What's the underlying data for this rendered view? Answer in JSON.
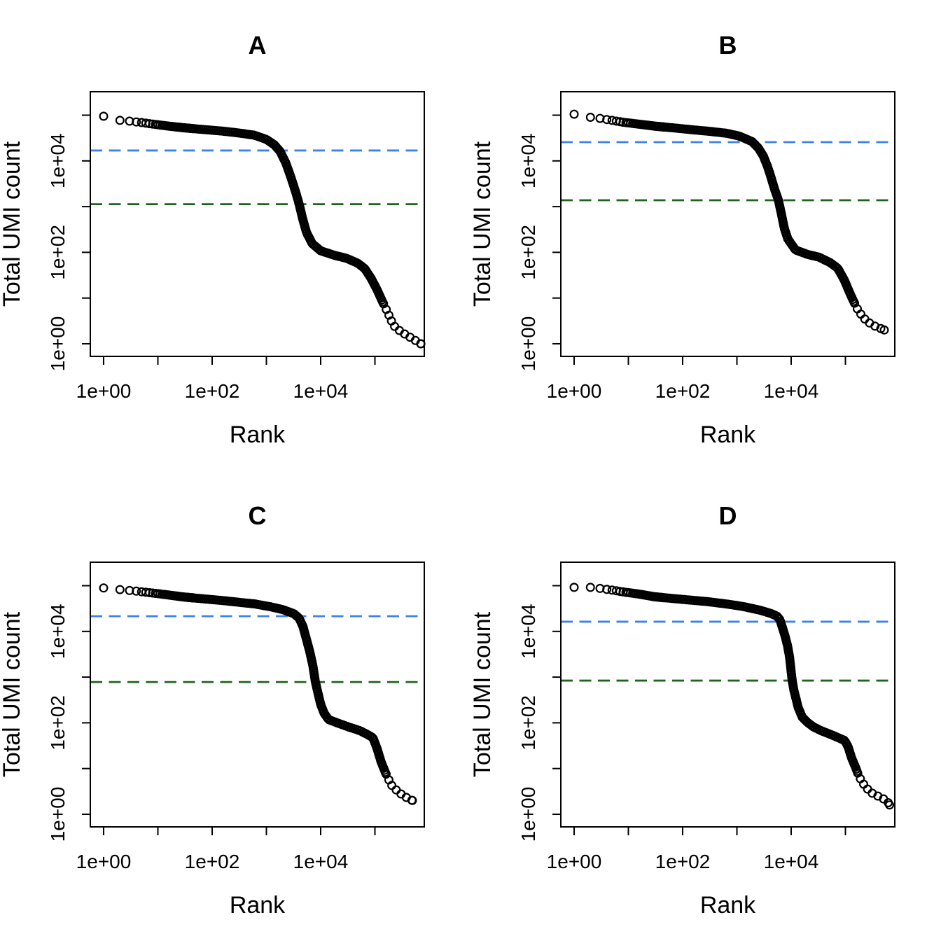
{
  "figure": {
    "background": "#ffffff",
    "layout": "2x2 panel grid of barcode rank plots"
  },
  "colors": {
    "point_stroke": "#000000",
    "knee_line": "#3b82f0",
    "inflection_line": "#1d651d",
    "axis": "#000000"
  },
  "axis_text": {
    "xlabel": "Rank",
    "ylabel": "Total UMI count",
    "x_tick_labels": [
      "1e+00",
      "1e+02",
      "1e+04"
    ],
    "y_tick_labels": [
      "1e+00",
      "1e+02",
      "1e+04"
    ]
  },
  "chart_data": [
    {
      "id": "A",
      "title": "A",
      "type": "scatter",
      "xlabel": "Rank",
      "ylabel": "Total UMI count",
      "x_scale": "log",
      "y_scale": "log",
      "x_tick_labels": [
        "1e+00",
        "1e+02",
        "1e+04"
      ],
      "y_tick_labels": [
        "1e+00",
        "1e+02",
        "1e+04"
      ],
      "x_range": [
        0.57,
        810000
      ],
      "y_range": [
        0.53,
        320000
      ],
      "knee_line_value": 16900,
      "inflection_line_value": 1130,
      "points": [
        [
          1,
          95000
        ],
        [
          2,
          77000
        ],
        [
          3,
          74000
        ],
        [
          5,
          69000
        ],
        [
          8,
          64000
        ],
        [
          15,
          58000
        ],
        [
          30,
          53000
        ],
        [
          70,
          48500
        ],
        [
          150,
          45000
        ],
        [
          300,
          41000
        ],
        [
          600,
          36500
        ],
        [
          1000,
          29500
        ],
        [
          1400,
          22500
        ],
        [
          1800,
          16000
        ],
        [
          2300,
          8800
        ],
        [
          2900,
          4000
        ],
        [
          3500,
          2000
        ],
        [
          4000,
          1150
        ],
        [
          4700,
          520
        ],
        [
          5500,
          270
        ],
        [
          7000,
          155
        ],
        [
          10000,
          108
        ],
        [
          18000,
          86
        ],
        [
          30000,
          74
        ],
        [
          48000,
          58
        ],
        [
          65000,
          44
        ],
        [
          85000,
          27
        ],
        [
          110000,
          15
        ],
        [
          140000,
          8
        ],
        [
          170000,
          5
        ],
        [
          200000,
          3.2
        ],
        [
          235000,
          2.3
        ],
        [
          310000,
          1.8
        ],
        [
          700000,
          1
        ]
      ]
    },
    {
      "id": "B",
      "title": "B",
      "type": "scatter",
      "xlabel": "Rank",
      "ylabel": "Total UMI count",
      "x_scale": "log",
      "y_scale": "log",
      "x_tick_labels": [
        "1e+00",
        "1e+02",
        "1e+04"
      ],
      "y_tick_labels": [
        "1e+00",
        "1e+02",
        "1e+04"
      ],
      "x_range": [
        0.57,
        810000
      ],
      "y_range": [
        0.53,
        320000
      ],
      "knee_line_value": 25700,
      "inflection_line_value": 1380,
      "points": [
        [
          1,
          105000
        ],
        [
          2,
          90000
        ],
        [
          3,
          85000
        ],
        [
          5,
          77000
        ],
        [
          8,
          70000
        ],
        [
          15,
          64000
        ],
        [
          31,
          57500
        ],
        [
          70,
          52500
        ],
        [
          150,
          48000
        ],
        [
          300,
          44500
        ],
        [
          620,
          40500
        ],
        [
          1100,
          35000
        ],
        [
          1900,
          26500
        ],
        [
          2500,
          19000
        ],
        [
          3100,
          12500
        ],
        [
          3700,
          7300
        ],
        [
          4200,
          4600
        ],
        [
          5000,
          2300
        ],
        [
          5800,
          1400
        ],
        [
          6700,
          640
        ],
        [
          7500,
          330
        ],
        [
          8700,
          195
        ],
        [
          12000,
          113
        ],
        [
          20000,
          90
        ],
        [
          33000,
          78
        ],
        [
          53000,
          59
        ],
        [
          72000,
          45
        ],
        [
          95000,
          25
        ],
        [
          120000,
          13
        ],
        [
          160000,
          6.2
        ],
        [
          210000,
          3.8
        ],
        [
          260000,
          3
        ],
        [
          330000,
          2.5
        ],
        [
          520000,
          2
        ]
      ]
    },
    {
      "id": "C",
      "title": "C",
      "type": "scatter",
      "xlabel": "Rank",
      "ylabel": "Total UMI count",
      "x_scale": "log",
      "y_scale": "log",
      "x_tick_labels": [
        "1e+00",
        "1e+02",
        "1e+04"
      ],
      "y_tick_labels": [
        "1e+00",
        "1e+02",
        "1e+04"
      ],
      "x_range": [
        0.57,
        810000
      ],
      "y_range": [
        0.53,
        320000
      ],
      "knee_line_value": 21500,
      "inflection_line_value": 780,
      "points": [
        [
          1,
          89000
        ],
        [
          2,
          82000
        ],
        [
          4,
          76000
        ],
        [
          8,
          69000
        ],
        [
          15,
          63000
        ],
        [
          30,
          56500
        ],
        [
          70,
          51500
        ],
        [
          150,
          47500
        ],
        [
          300,
          43500
        ],
        [
          600,
          40000
        ],
        [
          1200,
          34500
        ],
        [
          2000,
          30000
        ],
        [
          3200,
          24500
        ],
        [
          4000,
          19500
        ],
        [
          4700,
          13000
        ],
        [
          5400,
          7100
        ],
        [
          6300,
          3600
        ],
        [
          7200,
          1750
        ],
        [
          8000,
          780
        ],
        [
          9000,
          430
        ],
        [
          10000,
          255
        ],
        [
          11500,
          165
        ],
        [
          14000,
          118
        ],
        [
          22000,
          96
        ],
        [
          35000,
          79
        ],
        [
          52000,
          68
        ],
        [
          72000,
          56
        ],
        [
          92000,
          47
        ],
        [
          110000,
          27
        ],
        [
          130000,
          14
        ],
        [
          160000,
          7.6
        ],
        [
          200000,
          4.4
        ],
        [
          260000,
          3.2
        ],
        [
          340000,
          2.5
        ],
        [
          490000,
          2
        ]
      ]
    },
    {
      "id": "D",
      "title": "D",
      "type": "scatter",
      "xlabel": "Rank",
      "ylabel": "Total UMI count",
      "x_scale": "log",
      "y_scale": "log",
      "x_tick_labels": [
        "1e+00",
        "1e+02",
        "1e+04"
      ],
      "y_tick_labels": [
        "1e+00",
        "1e+02",
        "1e+04"
      ],
      "x_range": [
        0.57,
        810000
      ],
      "y_range": [
        0.53,
        320000
      ],
      "knee_line_value": 16300,
      "inflection_line_value": 840,
      "points": [
        [
          1,
          92000
        ],
        [
          2,
          92000
        ],
        [
          3,
          87000
        ],
        [
          5,
          80000
        ],
        [
          8,
          73000
        ],
        [
          15,
          66000
        ],
        [
          31,
          57000
        ],
        [
          70,
          52000
        ],
        [
          150,
          48000
        ],
        [
          300,
          44500
        ],
        [
          620,
          40000
        ],
        [
          1300,
          35000
        ],
        [
          2700,
          29000
        ],
        [
          4300,
          24500
        ],
        [
          5500,
          21500
        ],
        [
          6200,
          18000
        ],
        [
          7000,
          11500
        ],
        [
          7700,
          8000
        ],
        [
          8600,
          4800
        ],
        [
          9400,
          2600
        ],
        [
          10300,
          950
        ],
        [
          11200,
          520
        ],
        [
          12500,
          310
        ],
        [
          13500,
          215
        ],
        [
          16000,
          133
        ],
        [
          20000,
          102
        ],
        [
          26000,
          81
        ],
        [
          35000,
          68
        ],
        [
          53000,
          56
        ],
        [
          75000,
          47
        ],
        [
          97000,
          41
        ],
        [
          112000,
          30
        ],
        [
          130000,
          17
        ],
        [
          152000,
          11
        ],
        [
          178000,
          6.7
        ],
        [
          215000,
          4.6
        ],
        [
          248000,
          3.7
        ],
        [
          295000,
          3
        ],
        [
          370000,
          2.6
        ],
        [
          580000,
          2
        ],
        [
          650000,
          1.6
        ]
      ]
    }
  ]
}
